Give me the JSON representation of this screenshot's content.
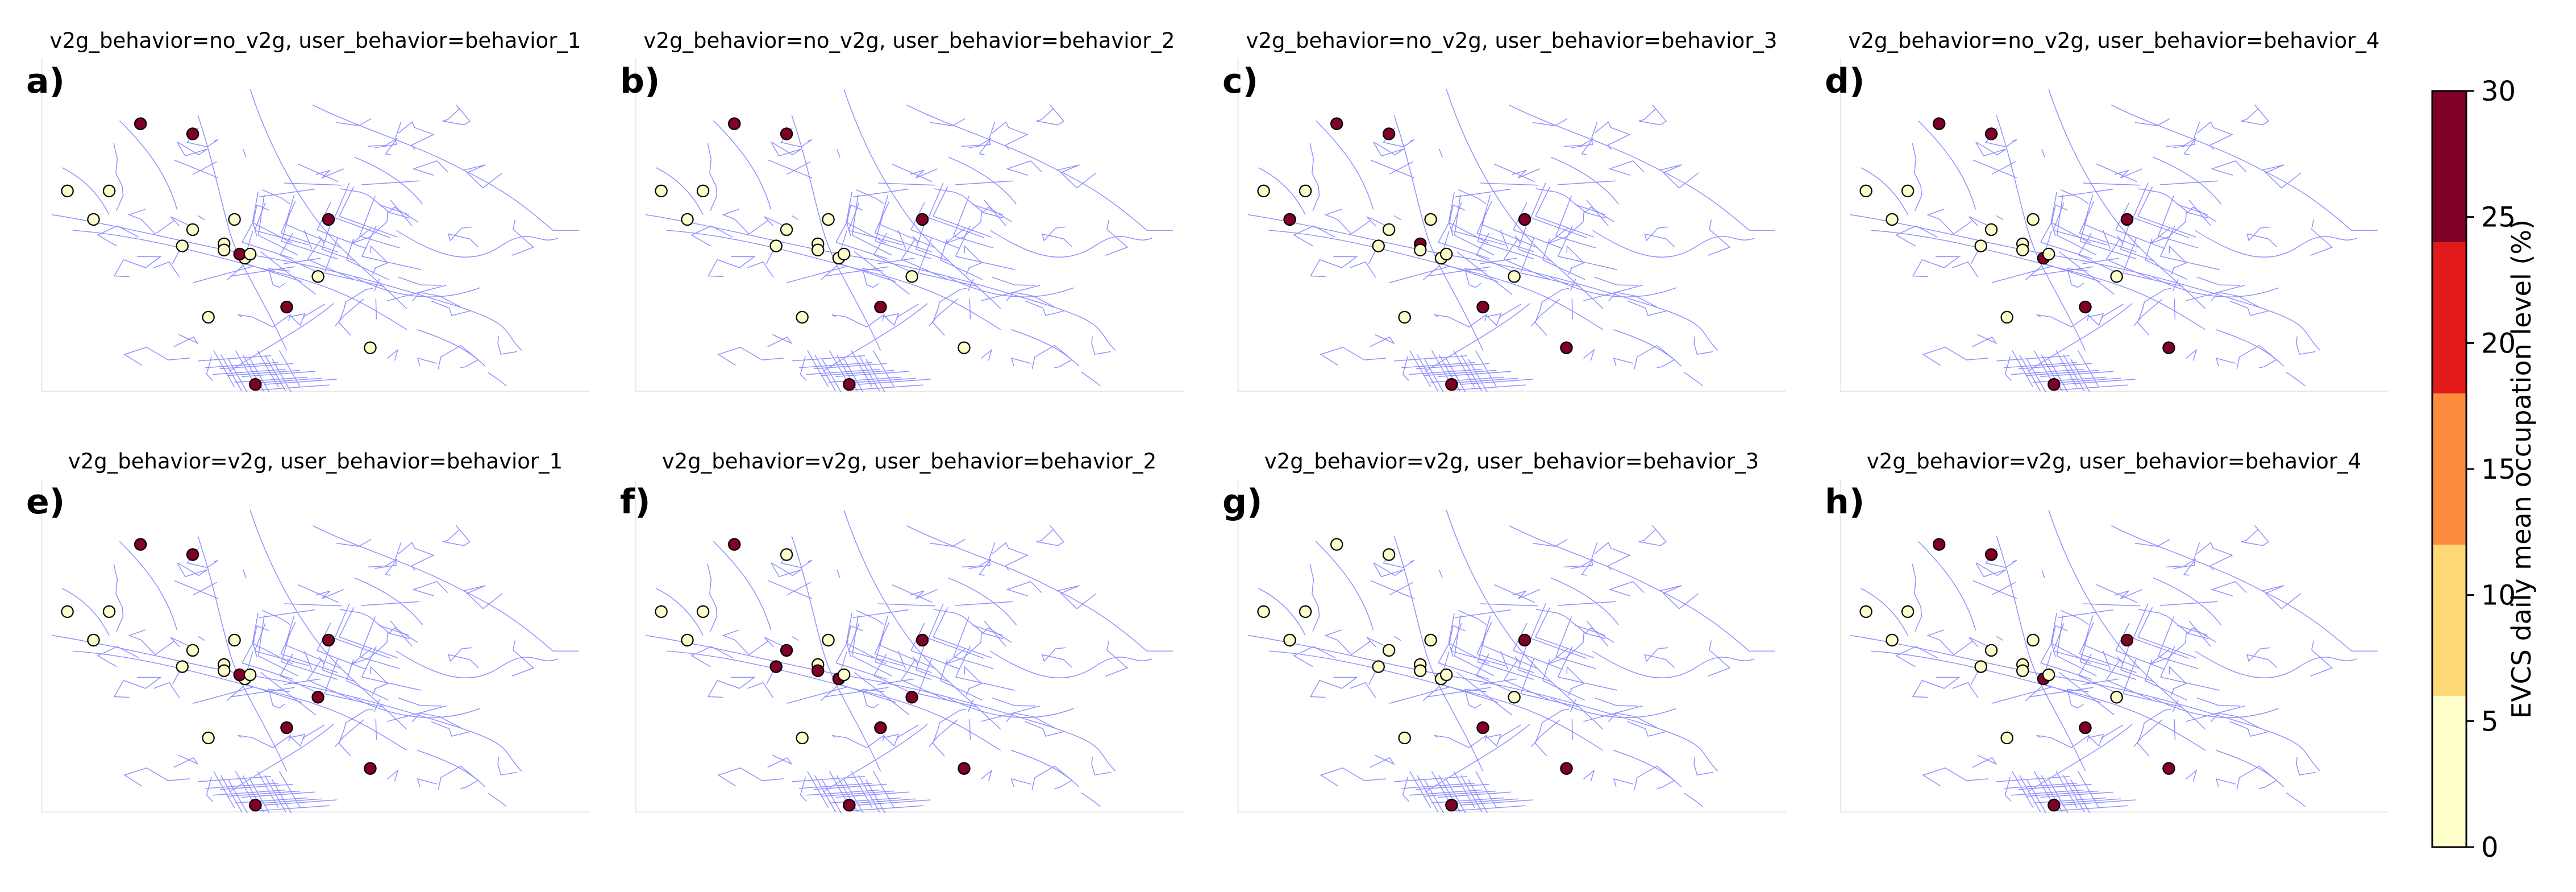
{
  "panels": [
    {
      "letter": "a)",
      "title": "v2g_behavior=no_v2g, user_behavior=behavior_1",
      "stations": [
        [
          "l",
          0.03,
          0.55
        ],
        [
          "l",
          0.08,
          0.69
        ],
        [
          "l",
          0.11,
          0.55
        ],
        [
          "d",
          0.17,
          0.22
        ],
        [
          "d",
          0.27,
          0.27
        ],
        [
          "l",
          0.25,
          0.82
        ],
        [
          "l",
          0.27,
          0.74
        ],
        [
          "l",
          0.33,
          0.81
        ],
        [
          "l",
          0.35,
          0.69
        ],
        [
          "l",
          0.33,
          0.84
        ],
        [
          "l",
          0.37,
          0.88
        ],
        [
          "d",
          0.36,
          0.86
        ],
        [
          "l",
          0.38,
          0.86
        ],
        [
          "d",
          0.53,
          0.69
        ],
        [
          "l",
          0.51,
          0.97
        ],
        [
          "d",
          0.45,
          1.12
        ],
        [
          "l",
          0.3,
          1.17
        ],
        [
          "l",
          0.61,
          1.32
        ],
        [
          "d",
          0.39,
          1.5
        ]
      ]
    },
    {
      "letter": "b)",
      "title": "v2g_behavior=no_v2g, user_behavior=behavior_2",
      "stations": [
        [
          "l",
          0.03,
          0.55
        ],
        [
          "l",
          0.08,
          0.69
        ],
        [
          "l",
          0.11,
          0.55
        ],
        [
          "d",
          0.17,
          0.22
        ],
        [
          "d",
          0.27,
          0.27
        ],
        [
          "l",
          0.25,
          0.82
        ],
        [
          "l",
          0.27,
          0.74
        ],
        [
          "l",
          0.33,
          0.81
        ],
        [
          "l",
          0.35,
          0.69
        ],
        [
          "l",
          0.33,
          0.84
        ],
        [
          "l",
          0.37,
          0.88
        ],
        [
          "l",
          0.38,
          0.86
        ],
        [
          "d",
          0.53,
          0.69
        ],
        [
          "l",
          0.51,
          0.97
        ],
        [
          "d",
          0.45,
          1.12
        ],
        [
          "l",
          0.3,
          1.17
        ],
        [
          "l",
          0.61,
          1.32
        ],
        [
          "d",
          0.39,
          1.5
        ]
      ]
    },
    {
      "letter": "c)",
      "title": "v2g_behavior=no_v2g, user_behavior=behavior_3",
      "stations": [
        [
          "l",
          0.03,
          0.55
        ],
        [
          "d",
          0.08,
          0.69
        ],
        [
          "l",
          0.11,
          0.55
        ],
        [
          "d",
          0.17,
          0.22
        ],
        [
          "d",
          0.27,
          0.27
        ],
        [
          "l",
          0.25,
          0.82
        ],
        [
          "l",
          0.27,
          0.74
        ],
        [
          "d",
          0.33,
          0.81
        ],
        [
          "l",
          0.35,
          0.69
        ],
        [
          "l",
          0.33,
          0.84
        ],
        [
          "l",
          0.37,
          0.88
        ],
        [
          "l",
          0.38,
          0.86
        ],
        [
          "d",
          0.53,
          0.69
        ],
        [
          "l",
          0.51,
          0.97
        ],
        [
          "d",
          0.45,
          1.12
        ],
        [
          "l",
          0.3,
          1.17
        ],
        [
          "d",
          0.61,
          1.32
        ],
        [
          "d",
          0.39,
          1.5
        ]
      ]
    },
    {
      "letter": "d)",
      "title": "v2g_behavior=no_v2g, user_behavior=behavior_4",
      "stations": [
        [
          "l",
          0.03,
          0.55
        ],
        [
          "l",
          0.08,
          0.69
        ],
        [
          "l",
          0.11,
          0.55
        ],
        [
          "d",
          0.17,
          0.22
        ],
        [
          "d",
          0.27,
          0.27
        ],
        [
          "l",
          0.25,
          0.82
        ],
        [
          "l",
          0.27,
          0.74
        ],
        [
          "l",
          0.33,
          0.81
        ],
        [
          "l",
          0.35,
          0.69
        ],
        [
          "l",
          0.33,
          0.84
        ],
        [
          "d",
          0.37,
          0.88
        ],
        [
          "l",
          0.38,
          0.86
        ],
        [
          "d",
          0.53,
          0.69
        ],
        [
          "l",
          0.51,
          0.97
        ],
        [
          "d",
          0.45,
          1.12
        ],
        [
          "l",
          0.3,
          1.17
        ],
        [
          "d",
          0.61,
          1.32
        ],
        [
          "d",
          0.39,
          1.5
        ]
      ]
    },
    {
      "letter": "e)",
      "title": "v2g_behavior=v2g, user_behavior=behavior_1",
      "stations": [
        [
          "l",
          0.03,
          0.55
        ],
        [
          "l",
          0.08,
          0.69
        ],
        [
          "l",
          0.11,
          0.55
        ],
        [
          "d",
          0.17,
          0.22
        ],
        [
          "d",
          0.27,
          0.27
        ],
        [
          "l",
          0.25,
          0.82
        ],
        [
          "l",
          0.27,
          0.74
        ],
        [
          "l",
          0.33,
          0.81
        ],
        [
          "l",
          0.35,
          0.69
        ],
        [
          "l",
          0.33,
          0.84
        ],
        [
          "l",
          0.37,
          0.88
        ],
        [
          "d",
          0.36,
          0.86
        ],
        [
          "l",
          0.38,
          0.86
        ],
        [
          "d",
          0.53,
          0.69
        ],
        [
          "d",
          0.51,
          0.97
        ],
        [
          "d",
          0.45,
          1.12
        ],
        [
          "l",
          0.3,
          1.17
        ],
        [
          "d",
          0.61,
          1.32
        ],
        [
          "d",
          0.39,
          1.5
        ]
      ]
    },
    {
      "letter": "f)",
      "title": "v2g_behavior=v2g, user_behavior=behavior_2",
      "stations": [
        [
          "l",
          0.03,
          0.55
        ],
        [
          "l",
          0.08,
          0.69
        ],
        [
          "l",
          0.11,
          0.55
        ],
        [
          "d",
          0.17,
          0.22
        ],
        [
          "l",
          0.27,
          0.27
        ],
        [
          "d",
          0.25,
          0.82
        ],
        [
          "d",
          0.27,
          0.74
        ],
        [
          "l",
          0.33,
          0.81
        ],
        [
          "l",
          0.35,
          0.69
        ],
        [
          "d",
          0.33,
          0.84
        ],
        [
          "d",
          0.37,
          0.88
        ],
        [
          "l",
          0.38,
          0.86
        ],
        [
          "d",
          0.53,
          0.69
        ],
        [
          "d",
          0.51,
          0.97
        ],
        [
          "d",
          0.45,
          1.12
        ],
        [
          "l",
          0.3,
          1.17
        ],
        [
          "d",
          0.61,
          1.32
        ],
        [
          "d",
          0.39,
          1.5
        ]
      ]
    },
    {
      "letter": "g)",
      "title": "v2g_behavior=v2g, user_behavior=behavior_3",
      "stations": [
        [
          "l",
          0.03,
          0.55
        ],
        [
          "l",
          0.08,
          0.69
        ],
        [
          "l",
          0.11,
          0.55
        ],
        [
          "l",
          0.17,
          0.22
        ],
        [
          "l",
          0.27,
          0.27
        ],
        [
          "l",
          0.25,
          0.82
        ],
        [
          "l",
          0.27,
          0.74
        ],
        [
          "l",
          0.33,
          0.81
        ],
        [
          "l",
          0.35,
          0.69
        ],
        [
          "l",
          0.33,
          0.84
        ],
        [
          "l",
          0.37,
          0.88
        ],
        [
          "l",
          0.38,
          0.86
        ],
        [
          "d",
          0.53,
          0.69
        ],
        [
          "l",
          0.51,
          0.97
        ],
        [
          "d",
          0.45,
          1.12
        ],
        [
          "l",
          0.3,
          1.17
        ],
        [
          "d",
          0.61,
          1.32
        ],
        [
          "d",
          0.39,
          1.5
        ]
      ]
    },
    {
      "letter": "h)",
      "title": "v2g_behavior=v2g, user_behavior=behavior_4",
      "stations": [
        [
          "l",
          0.03,
          0.55
        ],
        [
          "l",
          0.08,
          0.69
        ],
        [
          "l",
          0.11,
          0.55
        ],
        [
          "d",
          0.17,
          0.22
        ],
        [
          "d",
          0.27,
          0.27
        ],
        [
          "l",
          0.25,
          0.82
        ],
        [
          "l",
          0.27,
          0.74
        ],
        [
          "l",
          0.33,
          0.81
        ],
        [
          "l",
          0.35,
          0.69
        ],
        [
          "l",
          0.33,
          0.84
        ],
        [
          "d",
          0.37,
          0.88
        ],
        [
          "l",
          0.38,
          0.86
        ],
        [
          "d",
          0.53,
          0.69
        ],
        [
          "l",
          0.51,
          0.97
        ],
        [
          "d",
          0.45,
          1.12
        ],
        [
          "l",
          0.3,
          1.17
        ],
        [
          "d",
          0.61,
          1.32
        ],
        [
          "d",
          0.39,
          1.5
        ]
      ]
    }
  ],
  "colorbar": {
    "label": "EVCS daily mean occupation level (%)",
    "min": 0,
    "max": 30,
    "ticks": [
      "0",
      "5",
      "10",
      "15",
      "20",
      "25",
      "30"
    ],
    "bins": [
      {
        "from": 0,
        "to": 6,
        "color": "#ffffcc"
      },
      {
        "from": 6,
        "to": 12,
        "color": "#fed976"
      },
      {
        "from": 12,
        "to": 18,
        "color": "#fd8d3c"
      },
      {
        "from": 18,
        "to": 24,
        "color": "#e31a1c"
      },
      {
        "from": 24,
        "to": 30,
        "color": "#800026"
      }
    ]
  },
  "colors": {
    "network": "#6a6aff",
    "station_low": "#ffffcc",
    "station_high": "#800026",
    "marker_edge": "#000000"
  }
}
